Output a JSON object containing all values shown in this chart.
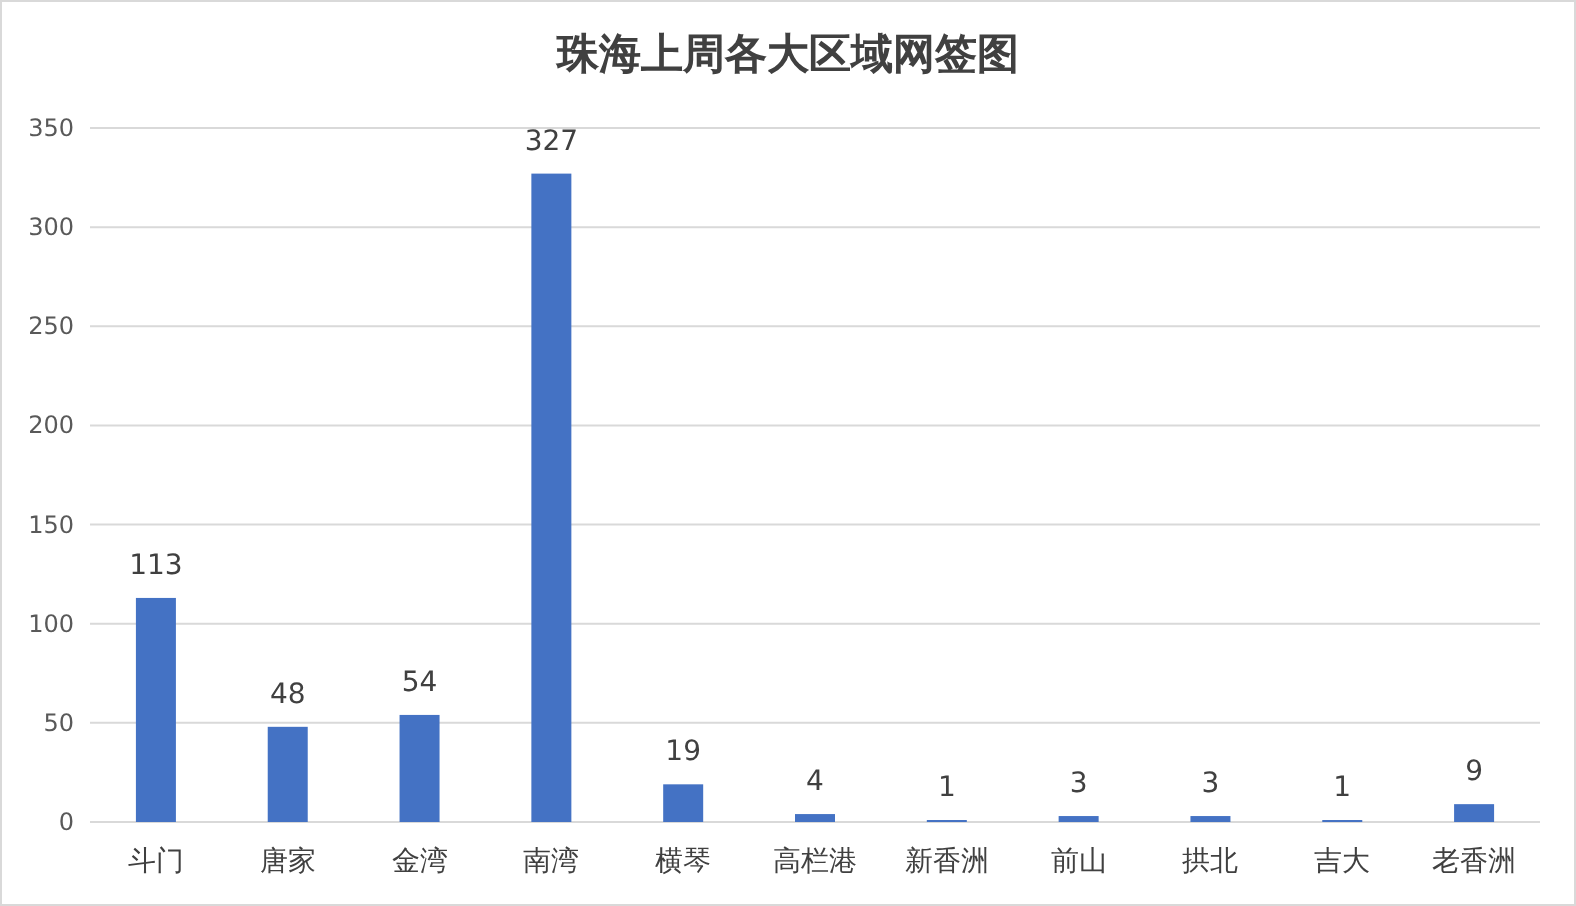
{
  "chart_data": {
    "type": "bar",
    "title": "珠海上周各大区域网签图",
    "categories": [
      "斗门",
      "唐家",
      "金湾",
      "南湾",
      "横琴",
      "高栏港",
      "新香洲",
      "前山",
      "拱北",
      "吉大",
      "老香洲"
    ],
    "values": [
      113,
      48,
      54,
      327,
      19,
      4,
      1,
      3,
      3,
      1,
      9
    ],
    "color": "#4472c4",
    "ylim": [
      0,
      350
    ],
    "yticks": [
      0,
      50,
      100,
      150,
      200,
      250,
      300,
      350
    ],
    "grid": "y",
    "data_labels": true
  }
}
